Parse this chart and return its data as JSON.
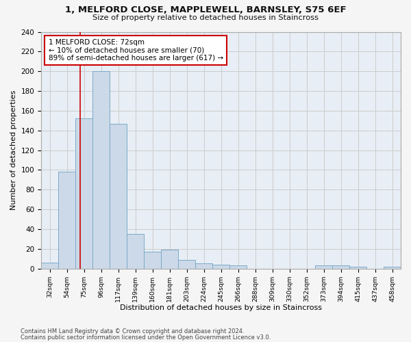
{
  "title1": "1, MELFORD CLOSE, MAPPLEWELL, BARNSLEY, S75 6EF",
  "title2": "Size of property relative to detached houses in Staincross",
  "xlabel": "Distribution of detached houses by size in Staincross",
  "ylabel": "Number of detached properties",
  "footnote1": "Contains HM Land Registry data © Crown copyright and database right 2024.",
  "footnote2": "Contains public sector information licensed under the Open Government Licence v3.0.",
  "bin_labels": [
    "32sqm",
    "54sqm",
    "75sqm",
    "96sqm",
    "117sqm",
    "139sqm",
    "160sqm",
    "181sqm",
    "203sqm",
    "224sqm",
    "245sqm",
    "266sqm",
    "288sqm",
    "309sqm",
    "330sqm",
    "352sqm",
    "373sqm",
    "394sqm",
    "415sqm",
    "437sqm",
    "458sqm"
  ],
  "bar_heights": [
    6,
    98,
    152,
    200,
    147,
    35,
    17,
    19,
    9,
    5,
    4,
    3,
    0,
    0,
    0,
    0,
    3,
    3,
    2,
    0,
    2
  ],
  "bar_color": "#ccd9e8",
  "bar_edge_color": "#7aaac8",
  "red_line_x": 1,
  "annotation_title": "1 MELFORD CLOSE: 72sqm",
  "annotation_line1": "← 10% of detached houses are smaller (70)",
  "annotation_line2": "89% of semi-detached houses are larger (617) →",
  "annotation_box_color": "#ffffff",
  "annotation_box_edge": "#cc0000",
  "ylim": [
    0,
    240
  ],
  "yticks": [
    0,
    20,
    40,
    60,
    80,
    100,
    120,
    140,
    160,
    180,
    200,
    220,
    240
  ],
  "grid_color": "#cccccc",
  "background_color": "#e8eef5",
  "fig_background": "#f5f5f5"
}
